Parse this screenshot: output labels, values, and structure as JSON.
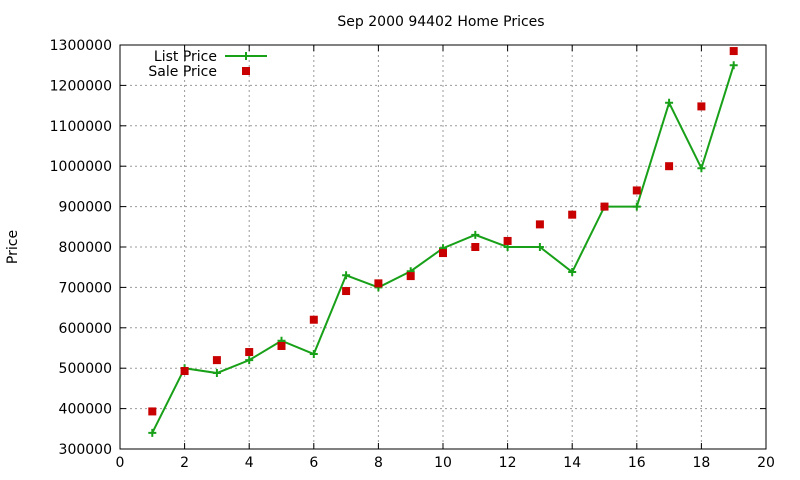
{
  "chart_data": {
    "type": "line",
    "title": "Sep 2000 94402 Home Prices",
    "xlabel": "",
    "ylabel": "Price",
    "xlim": [
      0,
      20
    ],
    "ylim": [
      300000,
      1300000
    ],
    "xticks": [
      "0",
      "2",
      "4",
      "6",
      "8",
      "10",
      "12",
      "14",
      "16",
      "18",
      "20"
    ],
    "yticks": [
      "300000",
      "400000",
      "500000",
      "600000",
      "700000",
      "800000",
      "900000",
      "1000000",
      "1100000",
      "1200000",
      "1300000"
    ],
    "grid": true,
    "legend_position": "top-left",
    "series": [
      {
        "name": "List Price",
        "style": "line-plus",
        "color": "#19a019",
        "x": [
          1,
          2,
          3,
          4,
          5,
          6,
          7,
          8,
          9,
          10,
          11,
          12,
          13,
          14,
          15,
          16,
          17,
          18,
          19
        ],
        "y": [
          340000,
          500000,
          488000,
          520000,
          568000,
          535000,
          730000,
          700000,
          740000,
          797000,
          830000,
          800000,
          800000,
          738000,
          900000,
          900000,
          1157000,
          995000,
          1250000
        ]
      },
      {
        "name": "Sale Price",
        "style": "square",
        "color": "#c80000",
        "x": [
          1,
          2,
          3,
          4,
          5,
          6,
          7,
          8,
          9,
          10,
          11,
          12,
          13,
          14,
          15,
          16,
          17,
          18,
          19
        ],
        "y": [
          393000,
          493000,
          520000,
          540000,
          555000,
          620000,
          691000,
          710000,
          728000,
          785000,
          800000,
          815000,
          856000,
          880000,
          900000,
          940000,
          1000000,
          1148000,
          1285000
        ]
      }
    ]
  }
}
